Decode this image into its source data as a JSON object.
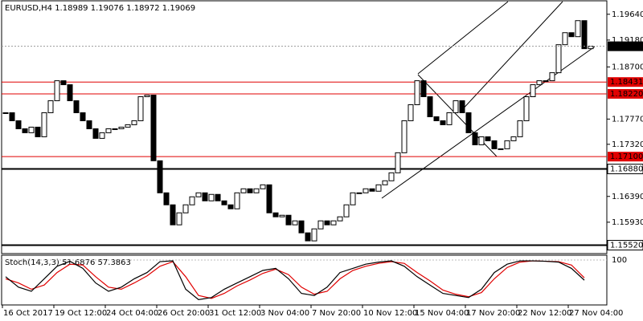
{
  "chart_data": {
    "type": "candlestick",
    "title": "EURUSD,H4  1.18989 1.19076 1.18972 1.19069",
    "close": [
      1.17883,
      1.1774,
      1.17597,
      1.17526,
      1.17626,
      1.17454,
      1.17883,
      1.18097,
      1.18454,
      1.18383,
      1.18097,
      1.17883,
      1.1774,
      1.17597,
      1.17426,
      1.17526,
      1.17597,
      1.17597,
      1.17626,
      1.17669,
      1.1774,
      1.18169,
      1.18197,
      1.17026,
      1.16454,
      1.1624,
      1.15883,
      1.16097,
      1.1624,
      1.16383,
      1.16454,
      1.16311,
      1.16426,
      1.16311,
      1.1624,
      1.16169,
      1.16454,
      1.16526,
      1.16454,
      1.16526,
      1.16597,
      1.16097,
      1.16026,
      1.16054,
      1.15883,
      1.15954,
      1.1574,
      1.15597,
      1.15811,
      1.15954,
      1.15883,
      1.15954,
      1.16026,
      1.1624,
      1.16454,
      1.16454,
      1.16526,
      1.16483,
      1.16597,
      1.16669,
      1.16811,
      1.17169,
      1.1774,
      1.18026,
      1.18454,
      1.18169,
      1.17811,
      1.1774,
      1.17669,
      1.17883,
      1.18097,
      1.17883,
      1.17526,
      1.17311,
      1.17454,
      1.17383,
      1.1724,
      1.1724,
      1.17383,
      1.17454,
      1.1774,
      1.18169,
      1.18383,
      1.18454,
      1.18454,
      1.18597,
      1.19097,
      1.19311,
      1.1924,
      1.19526,
      1.19026,
      1.19069
    ],
    "ylim": [
      1.1537,
      1.1988
    ],
    "yticks": [
      {
        "value": 1.1964,
        "label": "1.19640"
      },
      {
        "value": 1.1918,
        "label": "1.19180"
      },
      {
        "value": 1.187,
        "label": "1.18700"
      },
      {
        "value": 1.1777,
        "label": "1.17770"
      },
      {
        "value": 1.1732,
        "label": "1.17320"
      },
      {
        "value": 1.1639,
        "label": "1.16390"
      },
      {
        "value": 1.1593,
        "label": "1.15930"
      }
    ],
    "xticks": [
      {
        "value": 0,
        "label": "16 Oct 2017"
      },
      {
        "value": 8,
        "label": "19 Oct 12:00"
      },
      {
        "value": 16,
        "label": "24 Oct 04:00"
      },
      {
        "value": 24,
        "label": "26 Oct 20:00"
      },
      {
        "value": 32,
        "label": "31 Oct 12:00"
      },
      {
        "value": 40,
        "label": "3 Nov 04:00"
      },
      {
        "value": 48,
        "label": "7 Nov 20:00"
      },
      {
        "value": 56,
        "label": "10 Nov 12:00"
      },
      {
        "value": 64,
        "label": "15 Nov 04:00"
      },
      {
        "value": 72,
        "label": "17 Nov 20:00"
      },
      {
        "value": 80,
        "label": "22 Nov 12:00"
      },
      {
        "value": 88,
        "label": "27 Nov 04:00"
      }
    ],
    "levels": [
      {
        "value": 1.18431,
        "label": "1.18431",
        "color": "#e00000"
      },
      {
        "value": 1.1822,
        "label": "1.18220",
        "color": "#e00000"
      },
      {
        "value": 1.171,
        "label": "1.17100",
        "color": "#e00000"
      },
      {
        "value": 1.1688,
        "label": "1.16880",
        "color": "#000000"
      },
      {
        "value": 1.1552,
        "label": "1.15520",
        "color": "#000000"
      }
    ],
    "last_price": {
      "value": 1.19069,
      "label": "1.19069"
    },
    "stoch": {
      "title": "Stoch(14,3,3) 51.6876 57.3863",
      "ylim": [
        0,
        100
      ],
      "yticks": [
        100
      ],
      "main": {
        "color": "#000000",
        "values": [
          60,
          35,
          25,
          55,
          85,
          97,
          80,
          45,
          25,
          35,
          55,
          70,
          96,
          98,
          30,
          5,
          10,
          30,
          45,
          60,
          75,
          80,
          55,
          20,
          15,
          35,
          70,
          80,
          90,
          95,
          98,
          85,
          60,
          40,
          20,
          15,
          10,
          30,
          70,
          90,
          98,
          98,
          97,
          95,
          80,
          51.6876
        ]
      },
      "signal": {
        "color": "#e00000",
        "values": [
          55,
          45,
          30,
          40,
          70,
          90,
          88,
          60,
          35,
          30,
          45,
          62,
          85,
          96,
          60,
          15,
          8,
          20,
          38,
          52,
          68,
          78,
          65,
          35,
          18,
          25,
          55,
          75,
          85,
          92,
          96,
          92,
          70,
          50,
          28,
          18,
          12,
          22,
          55,
          82,
          95,
          98,
          97,
          96,
          88,
          57.3863
        ]
      }
    }
  }
}
